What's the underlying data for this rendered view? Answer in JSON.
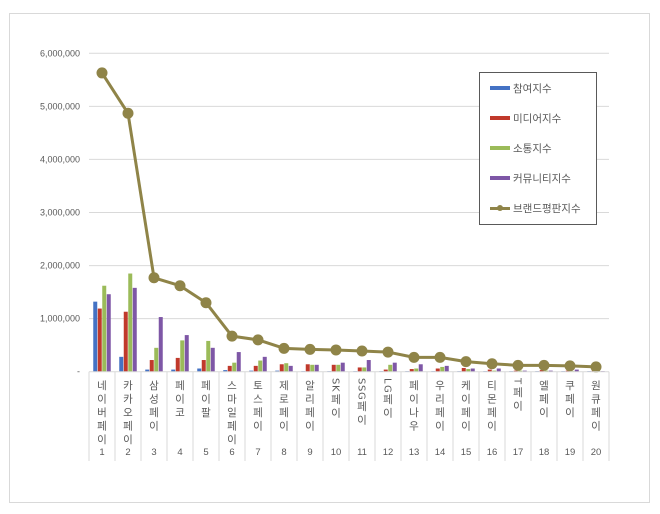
{
  "chart_data": {
    "type": "bar+line",
    "title": "",
    "xlabel": "",
    "ylabel": "",
    "ylim": [
      0,
      6000000
    ],
    "yticks": [
      0,
      1000000,
      2000000,
      3000000,
      4000000,
      5000000,
      6000000
    ],
    "ytick_labels": [
      "-",
      "1,000,000",
      "2,000,000",
      "3,000,000",
      "4,000,000",
      "5,000,000",
      "6,000,000"
    ],
    "grid": true,
    "legend_position": "upper right",
    "categories": [
      "네이버페이",
      "카카오페이",
      "삼성페이",
      "페이코",
      "페이팔",
      "스마일페이",
      "토스페이",
      "제로페이",
      "알리페이",
      "SK페이",
      "SSG페이",
      "LG페이",
      "페이나우",
      "우리페이",
      "케이페이",
      "티몬페이",
      "T페이",
      "엘페이",
      "쿠페이",
      "원큐페이"
    ],
    "ranks": [
      "1",
      "2",
      "3",
      "4",
      "5",
      "6",
      "7",
      "8",
      "9",
      "10",
      "11",
      "12",
      "13",
      "14",
      "15",
      "16",
      "17",
      "18",
      "19",
      "20"
    ],
    "series": [
      {
        "name": "참여지수",
        "type": "bar",
        "color": "#4472c4",
        "values": [
          1320000,
          280000,
          40000,
          40000,
          60000,
          30000,
          20000,
          20000,
          10000,
          10000,
          10000,
          10000,
          10000,
          10000,
          10000,
          10000,
          10000,
          10000,
          10000,
          10000
        ]
      },
      {
        "name": "미디어지수",
        "type": "bar",
        "color": "#c0392b",
        "values": [
          1190000,
          1130000,
          220000,
          260000,
          220000,
          110000,
          110000,
          140000,
          140000,
          130000,
          80000,
          40000,
          50000,
          60000,
          70000,
          40000,
          20000,
          30000,
          20000,
          20000
        ]
      },
      {
        "name": "소통지수",
        "type": "bar",
        "color": "#9bbb59",
        "values": [
          1620000,
          1850000,
          450000,
          590000,
          580000,
          170000,
          210000,
          160000,
          130000,
          130000,
          80000,
          130000,
          60000,
          90000,
          50000,
          20000,
          20000,
          20000,
          10000,
          10000
        ]
      },
      {
        "name": "커뮤니티지수",
        "type": "bar",
        "color": "#7e57a6",
        "values": [
          1460000,
          1580000,
          1030000,
          690000,
          450000,
          370000,
          280000,
          110000,
          130000,
          170000,
          220000,
          170000,
          140000,
          110000,
          60000,
          60000,
          20000,
          20000,
          40000,
          10000
        ]
      },
      {
        "name": "브랜드평판지수",
        "type": "line",
        "color": "#8f8448",
        "values": [
          5630000,
          4870000,
          1770000,
          1620000,
          1300000,
          670000,
          600000,
          440000,
          420000,
          410000,
          390000,
          370000,
          270000,
          270000,
          190000,
          150000,
          120000,
          120000,
          110000,
          90000
        ]
      }
    ]
  }
}
